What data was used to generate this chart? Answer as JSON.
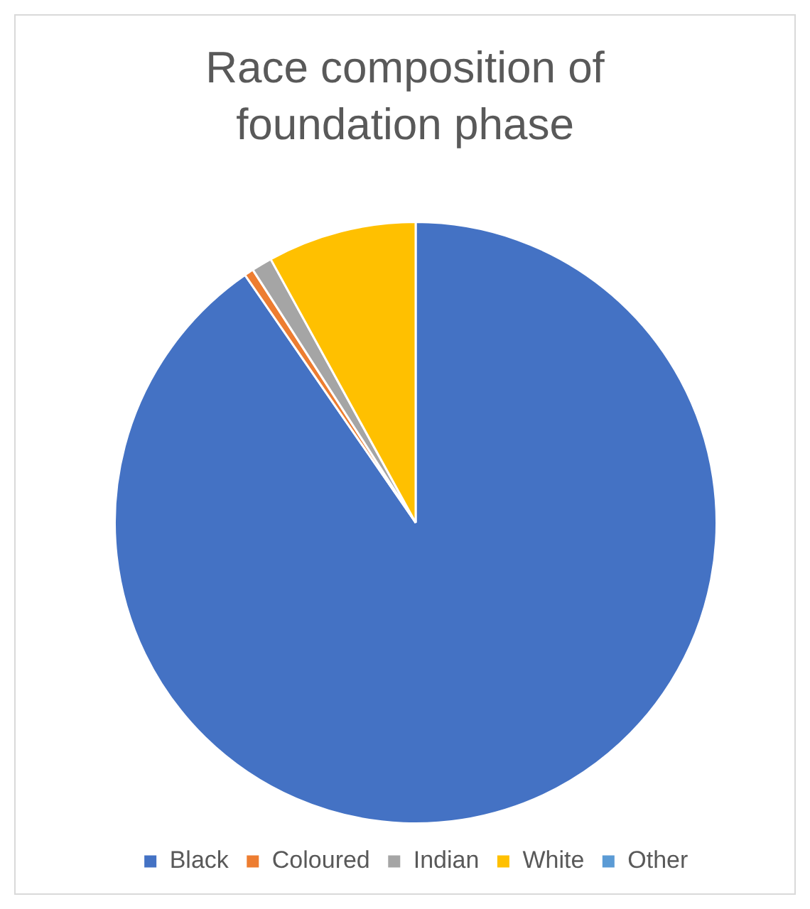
{
  "chart_data": {
    "type": "pie",
    "title": "Race composition of foundation phase",
    "categories": [
      "Black",
      "Coloured",
      "Indian",
      "White",
      "Other"
    ],
    "values": [
      90.4,
      0.5,
      1.1,
      8.0,
      0
    ],
    "colors": [
      "#4472c4",
      "#ed7d31",
      "#a5a5a5",
      "#ffc000",
      "#5b9bd5"
    ],
    "legend": "bottom"
  }
}
